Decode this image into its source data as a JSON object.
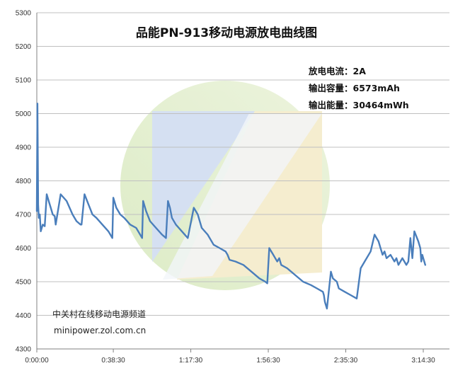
{
  "chart_data": {
    "type": "line",
    "title": "品能PN-913移动电源放电曲线图",
    "xlabel": "",
    "ylabel": "",
    "ylim": [
      4300,
      5300
    ],
    "yticks": [
      4300,
      4400,
      4500,
      4600,
      4700,
      4800,
      4900,
      5000,
      5100,
      5200,
      5300
    ],
    "xlim": [
      "0:00:00",
      "3:14:30"
    ],
    "xticks": [
      "0:00:00",
      "0:38:30",
      "1:17:30",
      "1:56:30",
      "2:35:30",
      "3:14:30"
    ],
    "grid": "horizontal",
    "annotations": [
      "放电电流：2A",
      "输出容量：6573mAh",
      "输出能量：30464mWh"
    ],
    "watermark": [
      "中关村在线移动电源频道",
      "minipower.zol.com.cn"
    ],
    "colors": {
      "line": "#4a7ebb",
      "grid": "#c0c0c0",
      "axis": "#808080"
    },
    "series": [
      {
        "x": [
          "0:00:00",
          "0:00:20",
          "0:00:40",
          "0:01:00",
          "0:01:30",
          "0:02:00",
          "0:03:00",
          "0:04:00",
          "0:05:00",
          "0:06:00",
          "0:07:00",
          "0:08:00",
          "0:09:00",
          "0:09:30",
          "0:12:00",
          "0:15:00",
          "0:18:00",
          "0:20:00",
          "0:22:00",
          "0:22:30",
          "0:24:00",
          "0:26:00",
          "0:28:00",
          "0:30:00",
          "0:33:00",
          "0:36:00",
          "0:37:00",
          "0:38:00",
          "0:38:30",
          "0:40:00",
          "0:42:00",
          "0:44:00",
          "0:47:00",
          "0:50:00",
          "0:52:00",
          "0:53:00",
          "0:53:30",
          "0:55:00",
          "0:57:00",
          "1:00:00",
          "1:03:00",
          "1:05:00",
          "1:06:00",
          "1:07:00",
          "1:08:00",
          "1:10:00",
          "1:13:00",
          "1:16:00",
          "1:19:00",
          "1:21:00",
          "1:22:00",
          "1:23:00",
          "1:26:00",
          "1:29:00",
          "1:32:00",
          "1:35:00",
          "1:36:00",
          "1:37:00",
          "1:40:00",
          "1:44:00",
          "1:48:00",
          "1:52:00",
          "1:55:00",
          "1:56:00",
          "1:57:00",
          "1:59:00",
          "2:00:00",
          "2:01:00",
          "2:02:00",
          "2:03:00",
          "2:06:00",
          "2:10:00",
          "2:14:00",
          "2:18:00",
          "2:21:00",
          "2:24:00",
          "2:24:30",
          "2:25:00",
          "2:26:00",
          "2:28:00",
          "2:29:00",
          "2:31:00",
          "2:32:00",
          "2:35:00",
          "2:38:00",
          "2:41:00",
          "2:43:00",
          "2:45:00",
          "2:48:00",
          "2:50:00",
          "2:51:00",
          "2:52:00",
          "2:53:00",
          "2:54:00",
          "2:55:00",
          "2:56:00",
          "2:58:00",
          "3:00:00",
          "3:01:00",
          "3:02:00",
          "3:03:00",
          "3:04:00",
          "3:05:00",
          "3:06:00",
          "3:07:00",
          "3:08:00",
          "3:09:00",
          "3:10:00",
          "3:12:00",
          "3:13:00",
          "3:13:30",
          "3:14:00",
          "3:14:30",
          "3:15:00",
          "3:15:30"
        ],
        "y": [
          4710,
          5030,
          4730,
          4690,
          4700,
          4650,
          4670,
          4665,
          4760,
          4740,
          4720,
          4700,
          4695,
          4670,
          4760,
          4740,
          4700,
          4680,
          4670,
          4670,
          4760,
          4730,
          4700,
          4690,
          4670,
          4650,
          4640,
          4630,
          4750,
          4720,
          4700,
          4690,
          4670,
          4660,
          4640,
          4630,
          4740,
          4710,
          4680,
          4660,
          4640,
          4630,
          4740,
          4720,
          4690,
          4670,
          4650,
          4630,
          4720,
          4700,
          4680,
          4660,
          4640,
          4610,
          4600,
          4590,
          4580,
          4565,
          4560,
          4550,
          4530,
          4510,
          4500,
          4495,
          4600,
          4580,
          4570,
          4560,
          4570,
          4550,
          4540,
          4520,
          4500,
          4490,
          4480,
          4470,
          4460,
          4440,
          4420,
          4530,
          4510,
          4500,
          4480,
          4470,
          4460,
          4450,
          4540,
          4560,
          4590,
          4640,
          4630,
          4620,
          4600,
          4580,
          4590,
          4570,
          4580,
          4560,
          4570,
          4550,
          4560,
          4570,
          4560,
          4550,
          4560,
          4630,
          4570,
          4650,
          4620,
          4600,
          4560,
          4580,
          4570,
          4560,
          4550
        ]
      }
    ]
  }
}
